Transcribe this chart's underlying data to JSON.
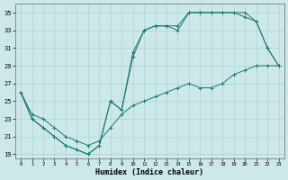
{
  "xlabel": "Humidex (Indice chaleur)",
  "bg_color": "#cce8e8",
  "grid_color": "#aad4d4",
  "line_color": "#1a7a6e",
  "xlim": [
    -0.5,
    23.5
  ],
  "ylim": [
    18.5,
    36.0
  ],
  "xticks": [
    0,
    1,
    2,
    3,
    4,
    5,
    6,
    7,
    8,
    9,
    10,
    11,
    12,
    13,
    14,
    15,
    16,
    17,
    18,
    19,
    20,
    21,
    22,
    23
  ],
  "yticks": [
    19,
    21,
    23,
    25,
    27,
    29,
    31,
    33,
    35
  ],
  "s1_x": [
    0,
    1,
    2,
    3,
    4,
    5,
    6,
    7,
    8,
    9,
    10,
    11,
    12,
    13,
    14,
    15,
    16,
    17,
    18,
    19,
    20,
    21,
    22,
    23
  ],
  "s1_y": [
    26,
    23,
    22,
    21,
    20,
    19.5,
    19,
    20,
    25,
    24,
    30,
    33,
    33.5,
    33.5,
    33,
    35,
    35,
    35,
    35,
    35,
    35,
    34,
    31,
    29
  ],
  "s2_x": [
    0,
    1,
    2,
    3,
    4,
    5,
    6,
    7,
    8,
    9,
    10,
    11,
    12,
    13,
    14,
    15,
    16,
    17,
    18,
    19,
    20,
    21,
    22,
    23
  ],
  "s2_y": [
    26,
    23,
    22,
    21,
    20,
    19.5,
    19,
    20,
    25,
    24,
    30.5,
    33,
    33.5,
    33.5,
    33.5,
    35,
    35,
    35,
    35,
    35,
    34.5,
    34,
    31,
    29
  ],
  "s3_x": [
    0,
    1,
    2,
    3,
    4,
    5,
    6,
    7,
    8,
    9,
    10,
    11,
    12,
    13,
    14,
    15,
    16,
    17,
    18,
    19,
    20,
    21,
    22,
    23
  ],
  "s3_y": [
    26,
    23.5,
    23,
    22,
    21,
    20.5,
    20,
    20.5,
    22,
    23.5,
    24.5,
    25,
    25.5,
    26,
    26.5,
    27,
    26.5,
    26.5,
    27,
    28,
    28.5,
    29,
    29,
    29
  ]
}
